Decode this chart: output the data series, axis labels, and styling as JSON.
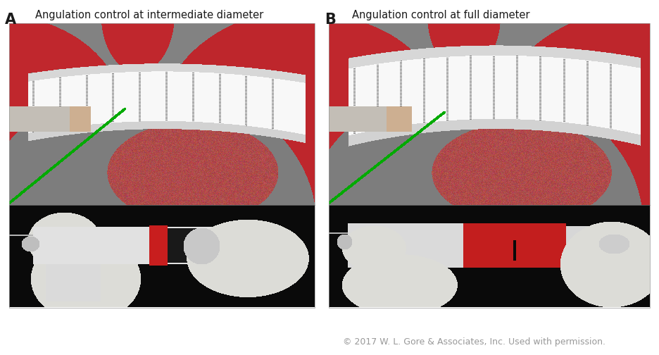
{
  "figure_width": 9.36,
  "figure_height": 5.04,
  "dpi": 100,
  "background_color": "#ffffff",
  "panel_A_label": "A",
  "panel_A_title": "Angulation control at intermediate diameter",
  "panel_B_label": "B",
  "panel_B_title": "Angulation control at full diameter",
  "label_fontsize": 15,
  "label_fontweight": "bold",
  "title_fontsize": 10.5,
  "title_color": "#1a1a1a",
  "label_color": "#1a1a1a",
  "copyright_text": "© 2017 W. L. Gore & Associates, Inc. Used with permission.",
  "copyright_fontsize": 9,
  "copyright_color": "#999999",
  "gray_bg": "#888888",
  "red_vessel": "#c0272d",
  "red_vessel_dark": "#8b1a1a",
  "red_lung": "#b03030",
  "stent_white": "#f5f5f5",
  "stent_line": "#707070",
  "black_bg": "#0a0a0a",
  "device_white": "#e0e0e0",
  "device_red": "#cc2020",
  "device_black": "#1a1a1a",
  "glove_white": "#dcdcdc",
  "green_wire": "#00bb00"
}
